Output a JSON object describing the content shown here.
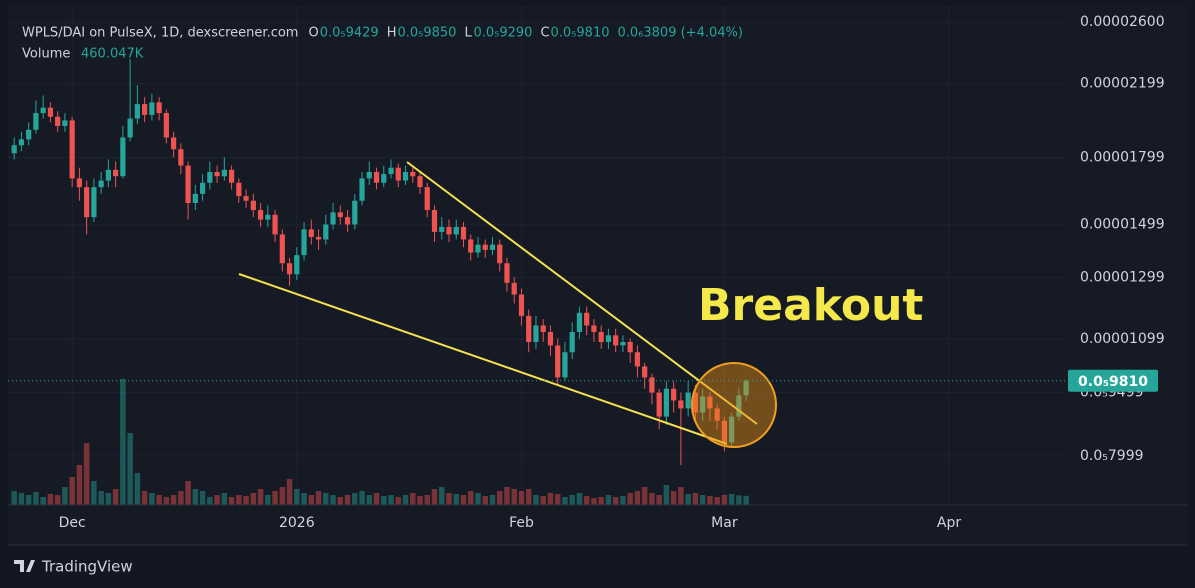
{
  "header": {
    "symbol": "WPLS/DAI on PulseX, 1D, dexscreener.com",
    "ohlc": [
      {
        "label": "O",
        "value": "0.0₅9429"
      },
      {
        "label": "H",
        "value": "0.0₅9850"
      },
      {
        "label": "L",
        "value": "0.0₅9290"
      },
      {
        "label": "C",
        "value": "0.0₅9810"
      }
    ],
    "change": "0.0₆3809 (+4.04%)",
    "volume_label": "Volume",
    "volume_value": "460.047K"
  },
  "chart_data": {
    "type": "candlestick",
    "annotation": "Breakout",
    "open": [
      1.82e-05,
      1.86e-05,
      1.89e-05,
      1.94e-05,
      2.03e-05,
      2.06e-05,
      2.01e-05,
      1.96e-05,
      1.99e-05,
      1.7e-05,
      1.66e-05,
      1.53e-05,
      1.66e-05,
      1.69e-05,
      1.74e-05,
      1.71e-05,
      1.9e-05,
      2e-05,
      2.08e-05,
      2.02e-05,
      2.09e-05,
      2.03e-05,
      1.9e-05,
      1.84e-05,
      1.76e-05,
      1.59e-05,
      1.63e-05,
      1.68e-05,
      1.73e-05,
      1.71e-05,
      1.74e-05,
      1.68e-05,
      1.62e-05,
      1.6e-05,
      1.56e-05,
      1.52e-05,
      1.54e-05,
      1.46e-05,
      1.35e-05,
      1.31e-05,
      1.38e-05,
      1.48e-05,
      1.45e-05,
      1.44e-05,
      1.5e-05,
      1.55e-05,
      1.53e-05,
      1.5e-05,
      1.6e-05,
      1.7e-05,
      1.73e-05,
      1.68e-05,
      1.72e-05,
      1.75e-05,
      1.69e-05,
      1.73e-05,
      1.71e-05,
      1.66e-05,
      1.56e-05,
      1.47e-05,
      1.49e-05,
      1.46e-05,
      1.49e-05,
      1.44e-05,
      1.39e-05,
      1.42e-05,
      1.4e-05,
      1.42e-05,
      1.35e-05,
      1.28e-05,
      1.24e-05,
      1.17e-05,
      1.09e-05,
      1.14e-05,
      1.12e-05,
      1.08e-05,
      9.9e-06,
      1.06e-05,
      1.12e-05,
      1.18e-05,
      1.14e-05,
      1.12e-05,
      1.09e-05,
      1.11e-05,
      1.08e-05,
      1.09e-05,
      1.06e-05,
      1.02e-05,
      9.9e-06,
      9.5e-06,
      8.9e-06,
      9.6e-06,
      9.3e-06,
      9.1e-06,
      9.5e-06,
      9e-06,
      9.4e-06,
      9.1e-06,
      8.8e-06,
      8.3e-06,
      8.9e-06,
      9.429e-06
    ],
    "high": [
      1.9e-05,
      1.93e-05,
      1.98e-05,
      2.1e-05,
      2.13e-05,
      2.09e-05,
      2.04e-05,
      2.03e-05,
      2.01e-05,
      1.75e-05,
      1.69e-05,
      1.7e-05,
      1.73e-05,
      1.79e-05,
      1.78e-05,
      1.96e-05,
      2.35e-05,
      2.19e-05,
      2.12e-05,
      2.14e-05,
      2.12e-05,
      2.05e-05,
      1.93e-05,
      1.87e-05,
      1.78e-05,
      1.67e-05,
      1.72e-05,
      1.78e-05,
      1.76e-05,
      1.8e-05,
      1.76e-05,
      1.7e-05,
      1.65e-05,
      1.63e-05,
      1.59e-05,
      1.58e-05,
      1.56e-05,
      1.48e-05,
      1.37e-05,
      1.41e-05,
      1.51e-05,
      1.52e-05,
      1.48e-05,
      1.54e-05,
      1.59e-05,
      1.58e-05,
      1.56e-05,
      1.63e-05,
      1.73e-05,
      1.78e-05,
      1.75e-05,
      1.76e-05,
      1.79e-05,
      1.77e-05,
      1.76e-05,
      1.75e-05,
      1.73e-05,
      1.68e-05,
      1.58e-05,
      1.53e-05,
      1.52e-05,
      1.52e-05,
      1.51e-05,
      1.46e-05,
      1.45e-05,
      1.44e-05,
      1.45e-05,
      1.44e-05,
      1.37e-05,
      1.3e-05,
      1.26e-05,
      1.19e-05,
      1.17e-05,
      1.16e-05,
      1.14e-05,
      1.1e-05,
      1.09e-05,
      1.15e-05,
      1.2e-05,
      1.2e-05,
      1.16e-05,
      1.14e-05,
      1.13e-05,
      1.13e-05,
      1.11e-05,
      1.1e-05,
      1.08e-05,
      1.03e-05,
      1e-05,
      9.6e-06,
      9.8e-06,
      9.8e-06,
      9.5e-06,
      9.8e-06,
      9.7e-06,
      9.6e-06,
      9.5e-06,
      9.2e-06,
      8.9e-06,
      9e-06,
      9.6e-06,
      9.85e-06
    ],
    "low": [
      1.79e-05,
      1.83e-05,
      1.86e-05,
      1.92e-05,
      2e-05,
      1.98e-05,
      1.93e-05,
      1.93e-05,
      1.66e-05,
      1.6e-05,
      1.46e-05,
      1.51e-05,
      1.63e-05,
      1.66e-05,
      1.66e-05,
      1.7e-05,
      1.88e-05,
      1.97e-05,
      1.98e-05,
      1.99e-05,
      1.99e-05,
      1.87e-05,
      1.8e-05,
      1.72e-05,
      1.52e-05,
      1.56e-05,
      1.6e-05,
      1.65e-05,
      1.68e-05,
      1.69e-05,
      1.65e-05,
      1.59e-05,
      1.57e-05,
      1.53e-05,
      1.49e-05,
      1.49e-05,
      1.43e-05,
      1.32e-05,
      1.27e-05,
      1.29e-05,
      1.36e-05,
      1.42e-05,
      1.4e-05,
      1.42e-05,
      1.48e-05,
      1.5e-05,
      1.47e-05,
      1.48e-05,
      1.58e-05,
      1.67e-05,
      1.65e-05,
      1.66e-05,
      1.7e-05,
      1.66e-05,
      1.67e-05,
      1.68e-05,
      1.63e-05,
      1.53e-05,
      1.43e-05,
      1.44e-05,
      1.43e-05,
      1.44e-05,
      1.41e-05,
      1.36e-05,
      1.37e-05,
      1.37e-05,
      1.38e-05,
      1.32e-05,
      1.25e-05,
      1.21e-05,
      1.14e-05,
      1.06e-05,
      1.07e-05,
      1.09e-05,
      1.05e-05,
      9.7e-06,
      9.8e-06,
      1.04e-05,
      1.1e-05,
      1.11e-05,
      1.09e-05,
      1.07e-05,
      1.07e-05,
      1.06e-05,
      1.06e-05,
      1.03e-05,
      9.9e-06,
      9.6e-06,
      9.2e-06,
      8.6e-06,
      8.7e-06,
      9e-06,
      7.8e-06,
      8.9e-06,
      8.8e-06,
      8.8e-06,
      8.8e-06,
      8.6e-06,
      8.1e-06,
      8.2e-06,
      8.8e-06,
      9.29e-06
    ],
    "close": [
      1.86e-05,
      1.89e-05,
      1.94e-05,
      2.03e-05,
      2.06e-05,
      2.01e-05,
      1.96e-05,
      1.99e-05,
      1.7e-05,
      1.66e-05,
      1.53e-05,
      1.66e-05,
      1.69e-05,
      1.74e-05,
      1.71e-05,
      1.9e-05,
      2e-05,
      2.08e-05,
      2.02e-05,
      2.09e-05,
      2.03e-05,
      1.9e-05,
      1.84e-05,
      1.76e-05,
      1.59e-05,
      1.63e-05,
      1.68e-05,
      1.73e-05,
      1.71e-05,
      1.74e-05,
      1.68e-05,
      1.62e-05,
      1.6e-05,
      1.56e-05,
      1.52e-05,
      1.54e-05,
      1.46e-05,
      1.35e-05,
      1.31e-05,
      1.38e-05,
      1.48e-05,
      1.45e-05,
      1.44e-05,
      1.5e-05,
      1.55e-05,
      1.53e-05,
      1.5e-05,
      1.6e-05,
      1.7e-05,
      1.73e-05,
      1.68e-05,
      1.72e-05,
      1.75e-05,
      1.69e-05,
      1.73e-05,
      1.71e-05,
      1.66e-05,
      1.56e-05,
      1.47e-05,
      1.49e-05,
      1.46e-05,
      1.49e-05,
      1.44e-05,
      1.39e-05,
      1.42e-05,
      1.4e-05,
      1.42e-05,
      1.35e-05,
      1.28e-05,
      1.24e-05,
      1.17e-05,
      1.09e-05,
      1.14e-05,
      1.12e-05,
      1.08e-05,
      9.9e-06,
      1.06e-05,
      1.12e-05,
      1.18e-05,
      1.14e-05,
      1.12e-05,
      1.09e-05,
      1.11e-05,
      1.08e-05,
      1.09e-05,
      1.06e-05,
      1.02e-05,
      9.9e-06,
      9.5e-06,
      8.9e-06,
      9.6e-06,
      9.3e-06,
      9.1e-06,
      9.5e-06,
      9e-06,
      9.4e-06,
      9.1e-06,
      8.8e-06,
      8.3e-06,
      8.9e-06,
      9.429e-06,
      9.81e-06
    ],
    "volume": [
      700000.0,
      600000.0,
      500000.0,
      650000.0,
      400000.0,
      550000.0,
      500000.0,
      900000.0,
      1400000.0,
      2000000.0,
      3100000.0,
      1200000.0,
      700000.0,
      600000.0,
      800000.0,
      6300000.0,
      3600000.0,
      1600000.0,
      700000.0,
      600000.0,
      500000.0,
      400000.0,
      500000.0,
      700000.0,
      1200000.0,
      800000.0,
      700000.0,
      400000.0,
      500000.0,
      600000.0,
      400000.0,
      500000.0,
      450000.0,
      600000.0,
      800000.0,
      500000.0,
      700000.0,
      900000.0,
      1300000.0,
      800000.0,
      600000.0,
      500000.0,
      700000.0,
      600000.0,
      500000.0,
      400000.0,
      500000.0,
      600000.0,
      700000.0,
      500000.0,
      600000.0,
      450000.0,
      500000.0,
      400000.0,
      500000.0,
      600000.0,
      450000.0,
      500000.0,
      800000.0,
      900000.0,
      600000.0,
      550000.0,
      500000.0,
      700000.0,
      600000.0,
      450000.0,
      500000.0,
      700000.0,
      900000.0,
      800000.0,
      700000.0,
      800000.0,
      500000.0,
      450000.0,
      600000.0,
      550000.0,
      400000.0,
      500000.0,
      600000.0,
      450000.0,
      350000.0,
      400000.0,
      500000.0,
      400000.0,
      450000.0,
      600000.0,
      700000.0,
      900000.0,
      600000.0,
      500000.0,
      1000000.0,
      700000.0,
      900000.0,
      550000.0,
      600000.0,
      500000.0,
      450000.0,
      400000.0,
      500000.0,
      550000.0,
      480000.0,
      460047
    ],
    "vlim": [
      0,
      7000000
    ],
    "last_price_label": "0.0₅9810",
    "up_color": "#26a69a",
    "down_color": "#ef5350",
    "log_scale": true,
    "grid": true,
    "ylim": [
      7e-06,
      2.76e-05
    ],
    "yticks": [
      {
        "value": 2.6e-05,
        "label": "0.00002600"
      },
      {
        "value": 2.199e-05,
        "label": "0.00002199"
      },
      {
        "value": 1.799e-05,
        "label": "0.00001799"
      },
      {
        "value": 1.499e-05,
        "label": "0.00001499"
      },
      {
        "value": 1.299e-05,
        "label": "0.00001299"
      },
      {
        "value": 1.099e-05,
        "label": "0.00001099"
      },
      {
        "value": 9.499e-06,
        "label": "0.0₅9499"
      },
      {
        "value": 7.999e-06,
        "label": "0.0₅7999"
      }
    ],
    "xlim": [
      -0.3,
      145
    ],
    "xticks": [
      {
        "value": 8,
        "label": "Dec"
      },
      {
        "value": 39,
        "label": "2026"
      },
      {
        "value": 70,
        "label": "Feb"
      },
      {
        "value": 98,
        "label": "Mar"
      },
      {
        "value": 129,
        "label": "Apr"
      }
    ]
  },
  "footer": {
    "brand": "TradingView"
  }
}
